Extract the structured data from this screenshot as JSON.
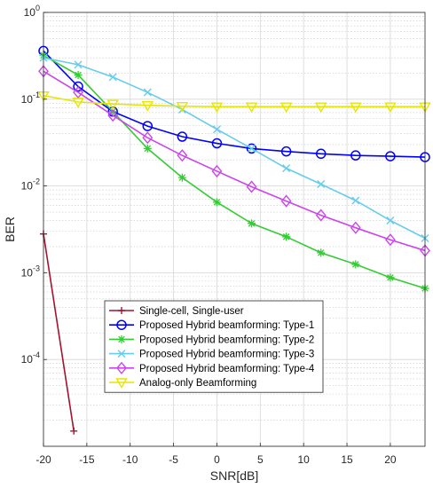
{
  "chart_data": {
    "type": "line",
    "title": "",
    "xlabel": "SNR[dB]",
    "ylabel": "BER",
    "xlim": [
      -20,
      24
    ],
    "ylim": [
      1e-05,
      1
    ],
    "yscale": "log",
    "grid": true,
    "minor_grid": true,
    "legend_position": "bottom-center",
    "x_ticks": [
      -20,
      -15,
      -10,
      -5,
      0,
      5,
      10,
      15,
      20
    ],
    "x_tick_labels": [
      "-20",
      "-15",
      "-10",
      "-5",
      "0",
      "5",
      "10",
      "15",
      "20"
    ],
    "y_ticks": [
      0.0001,
      0.001,
      0.01,
      0.1,
      1
    ],
    "y_tick_labels": [
      {
        "base": "10",
        "exp": "-4"
      },
      {
        "base": "10",
        "exp": "-3"
      },
      {
        "base": "10",
        "exp": "-2"
      },
      {
        "base": "10",
        "exp": "-1"
      },
      {
        "base": "10",
        "exp": "0"
      }
    ],
    "series": [
      {
        "name": "Single-cell, Single-user",
        "color": "#a2142f",
        "marker": "plus",
        "x": [
          -20,
          -16.5
        ],
        "y": [
          0.0028,
          1.5e-05
        ]
      },
      {
        "name": "Proposed Hybrid beamforming: Type-1",
        "color": "#0000ff",
        "marker": "circle",
        "x": [
          -20,
          -16,
          -12,
          -8,
          -4,
          0,
          4,
          8,
          12,
          16,
          20,
          24
        ],
        "y": [
          0.36,
          0.14,
          0.072,
          0.049,
          0.037,
          0.031,
          0.027,
          0.025,
          0.0235,
          0.0225,
          0.022,
          0.0215
        ]
      },
      {
        "name": "Proposed Hybrid beamforming: Type-2",
        "color": "#33cc33",
        "marker": "asterisk",
        "x": [
          -20,
          -16,
          -12,
          -8,
          -4,
          0,
          4,
          8,
          12,
          16,
          20,
          24
        ],
        "y": [
          0.32,
          0.19,
          0.072,
          0.027,
          0.0125,
          0.0065,
          0.0037,
          0.0026,
          0.0017,
          0.00125,
          0.00088,
          0.00066
        ]
      },
      {
        "name": "Proposed Hybrid beamforming: Type-3",
        "color": "#66ccee",
        "marker": "x",
        "x": [
          -20,
          -16,
          -12,
          -8,
          -4,
          0,
          4,
          8,
          12,
          16,
          20,
          24
        ],
        "y": [
          0.3,
          0.25,
          0.18,
          0.12,
          0.076,
          0.045,
          0.027,
          0.016,
          0.0105,
          0.0068,
          0.004,
          0.0025
        ]
      },
      {
        "name": "Proposed Hybrid beamforming: Type-4",
        "color": "#cc44ee",
        "marker": "diamond",
        "x": [
          -20,
          -16,
          -12,
          -8,
          -4,
          0,
          4,
          8,
          12,
          16,
          20,
          24
        ],
        "y": [
          0.21,
          0.12,
          0.065,
          0.036,
          0.0225,
          0.0148,
          0.0098,
          0.0067,
          0.0046,
          0.0033,
          0.0024,
          0.0018
        ]
      },
      {
        "name": "Analog-only Beamforming",
        "color": "#e6e600",
        "marker": "triangle-down",
        "x": [
          -20,
          -16,
          -12,
          -8,
          -4,
          0,
          4,
          8,
          12,
          16,
          20,
          24
        ],
        "y": [
          0.11,
          0.093,
          0.088,
          0.085,
          0.083,
          0.082,
          0.082,
          0.082,
          0.082,
          0.082,
          0.082,
          0.082
        ]
      }
    ]
  }
}
